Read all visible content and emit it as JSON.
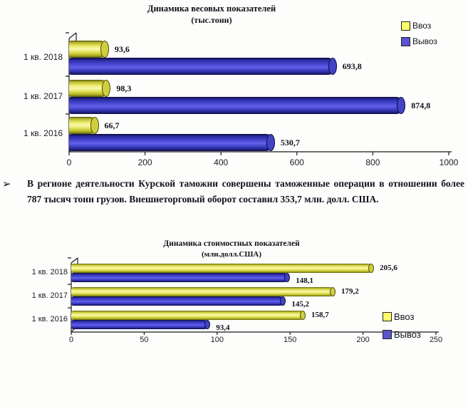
{
  "paragraph": {
    "bullet": "➢",
    "text": "В регионе деятельности Курской таможни совершены таможенные операции в отношении более 787 тысяч тонн грузов. Внешнеторговый оборот составил 353,7 млн. долл.  США."
  },
  "colors": {
    "import_swatch": "#ffff66",
    "export_swatch": "#5b54ce",
    "axis": "#1a1a1a"
  },
  "chart_data": [
    {
      "type": "bar",
      "orientation": "horizontal",
      "style": "3d-cylinder",
      "title": "Динамика весовых показателей",
      "subtitle": "(тыс.тонн)",
      "categories": [
        "1 кв. 2018",
        "1 кв. 2017",
        "1 кв. 2016"
      ],
      "series": [
        {
          "name": "Ввоз",
          "values": [
            93.6,
            98.3,
            66.7
          ],
          "labels": [
            "93,6",
            "98,3",
            "66,7"
          ]
        },
        {
          "name": "Вывоз",
          "values": [
            693.8,
            874.8,
            530.7
          ],
          "labels": [
            "693,8",
            "874,8",
            "530,7"
          ]
        }
      ],
      "xlim": [
        0,
        1000
      ],
      "xticks": [
        0,
        200,
        400,
        600,
        800,
        1000
      ],
      "xtick_labels": [
        "0",
        "200",
        "400",
        "600",
        "800",
        "1000"
      ],
      "legend_position": "top-right",
      "grid": false
    },
    {
      "type": "bar",
      "orientation": "horizontal",
      "style": "3d-cylinder",
      "title": "Динамика стоимостных показателей",
      "subtitle": "(млн.долл.США)",
      "categories": [
        "1 кв. 2018",
        "1 кв. 2017",
        "1 кв. 2016"
      ],
      "series": [
        {
          "name": "Ввоз",
          "values": [
            205.6,
            179.2,
            158.7
          ],
          "labels": [
            "205,6",
            "179,2",
            "158,7"
          ]
        },
        {
          "name": "Вывоз",
          "values": [
            148.1,
            145.2,
            93.4
          ],
          "labels": [
            "148,1",
            "145,2",
            "93,4"
          ]
        }
      ],
      "xlim": [
        0,
        250
      ],
      "xticks": [
        0,
        50,
        100,
        150,
        200,
        250
      ],
      "xtick_labels": [
        "0",
        "50",
        "100",
        "150",
        "200",
        "250"
      ],
      "legend_position": "right",
      "grid": false
    }
  ]
}
